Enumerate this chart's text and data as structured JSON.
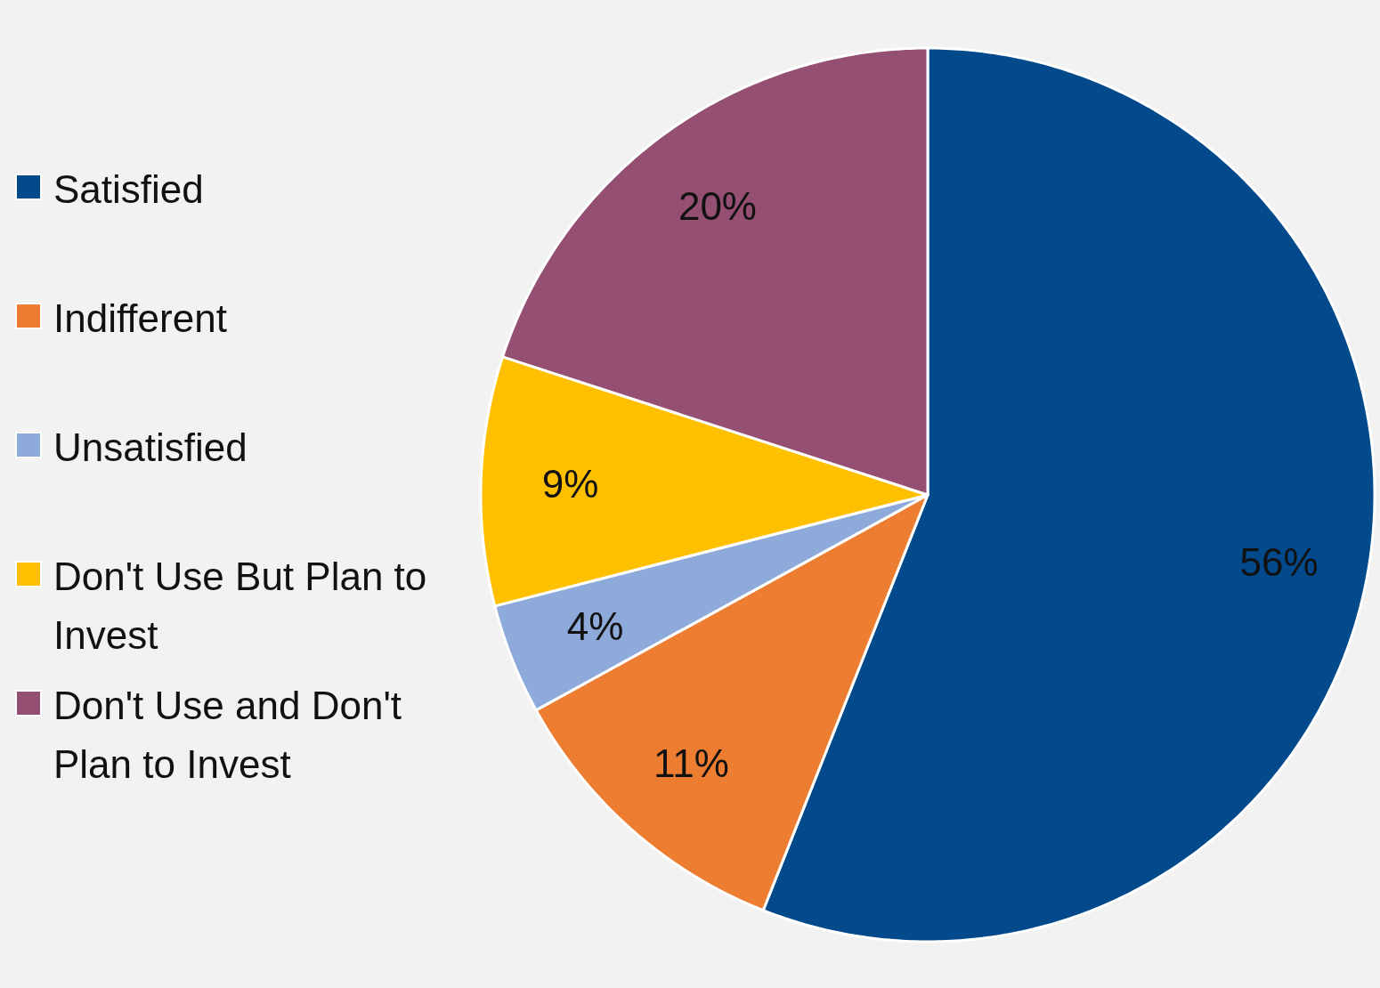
{
  "chart_data": {
    "type": "pie",
    "categories": [
      "Satisfied",
      "Indifferent",
      "Unsatisfied",
      "Don't Use But Plan to Invest",
      "Don't Use and Don't Plan to Invest"
    ],
    "values": [
      56,
      11,
      4,
      9,
      20
    ],
    "colors": [
      "#034a8d",
      "#ed7d31",
      "#8eaadb",
      "#ffc000",
      "#954f72"
    ],
    "value_labels": [
      "56%",
      "11%",
      "4%",
      "9%",
      "20%"
    ],
    "legend": "left"
  }
}
